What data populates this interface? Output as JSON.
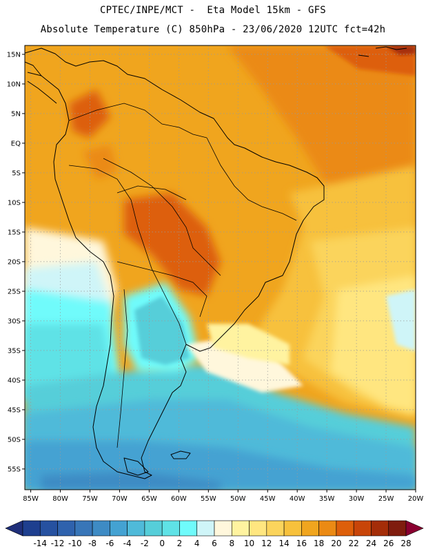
{
  "header": {
    "line1": "CPTEC/INPE/MCT -  Eta Model 15km - GFS",
    "line2": "Absolute Temperature (C) 850hPa - 23/06/2020 12UTC fct=42h"
  },
  "map": {
    "lat_labels": [
      "15N",
      "10N",
      "5N",
      "EQ",
      "5S",
      "10S",
      "15S",
      "20S",
      "25S",
      "30S",
      "35S",
      "40S",
      "45S",
      "50S",
      "55S"
    ],
    "lon_labels": [
      "85W",
      "80W",
      "75W",
      "70W",
      "65W",
      "60W",
      "55W",
      "50W",
      "45W",
      "40W",
      "35W",
      "30W",
      "25W",
      "20W"
    ],
    "lat_values": [
      15,
      10,
      5,
      0,
      -5,
      -10,
      -15,
      -20,
      -25,
      -30,
      -35,
      -40,
      -45,
      -50,
      -55
    ],
    "lon_values": [
      -85,
      -80,
      -75,
      -70,
      -65,
      -60,
      -55,
      -50,
      -45,
      -40,
      -35,
      -30,
      -25,
      -20
    ],
    "lon_range": [
      -86,
      -20
    ],
    "lat_range": [
      -58.5,
      16.5
    ]
  },
  "colorbar": {
    "labels": [
      "-14",
      "-12",
      "-10",
      "-8",
      "-6",
      "-4",
      "-2",
      "0",
      "2",
      "4",
      "6",
      "8",
      "10",
      "12",
      "14",
      "16",
      "18",
      "20",
      "22",
      "24",
      "26",
      "28"
    ],
    "colors": [
      "#1e3f8f",
      "#2651a0",
      "#2f62ad",
      "#3876b8",
      "#3e8bc4",
      "#44a2d2",
      "#4fbad9",
      "#56ced9",
      "#5fe2e6",
      "#6ffbfb",
      "#cff5f8",
      "#fff7dc",
      "#fff3a0",
      "#ffe680",
      "#fbd45c",
      "#f7c13c",
      "#f0a51e",
      "#eb8a14",
      "#dd5f0a",
      "#c84509",
      "#a42d08",
      "#7f1c0e"
    ],
    "under_color": "#1f2f7a",
    "over_color": "#8a0030"
  }
}
